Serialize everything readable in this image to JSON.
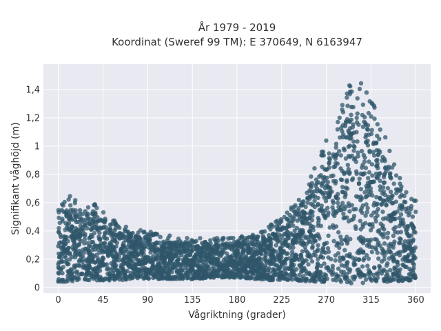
{
  "chart_data": {
    "type": "scatter",
    "title_line1": "År 1979 - 2019",
    "title_line2": "Koordinat (Sweref 99 TM): E 370649, N 6163947",
    "xlabel": "Vågriktning (grader)",
    "ylabel": "Signifikant våghöjd (m)",
    "xlim": [
      -15,
      375
    ],
    "ylim": [
      -0.04,
      1.58
    ],
    "x_ticks": [
      0,
      45,
      90,
      135,
      180,
      225,
      270,
      315,
      360
    ],
    "x_tick_labels": [
      "0",
      "45",
      "90",
      "135",
      "180",
      "225",
      "270",
      "315",
      "360"
    ],
    "y_ticks": [
      0,
      0.2,
      0.4,
      0.6,
      0.8,
      1,
      1.2,
      1.4
    ],
    "y_tick_labels": [
      "0",
      "0,2",
      "0,4",
      "0,6",
      "0,8",
      "1",
      "1,2",
      "1,4"
    ],
    "grid": true,
    "marker_color": "#2f5669",
    "background_color": "#e8e9f1",
    "envelope": {
      "x": [
        0,
        10,
        20,
        35,
        45,
        60,
        75,
        90,
        110,
        135,
        160,
        180,
        200,
        215,
        225,
        240,
        255,
        270,
        285,
        295,
        305,
        315,
        325,
        340,
        350,
        360
      ],
      "y_min": [
        0.04,
        0.04,
        0.05,
        0.05,
        0.05,
        0.05,
        0.06,
        0.06,
        0.06,
        0.06,
        0.07,
        0.07,
        0.06,
        0.05,
        0.05,
        0.05,
        0.04,
        0.04,
        0.04,
        0.03,
        0.03,
        0.04,
        0.04,
        0.04,
        0.05,
        0.05
      ],
      "y_max": [
        0.57,
        0.66,
        0.6,
        0.6,
        0.55,
        0.45,
        0.42,
        0.4,
        0.37,
        0.35,
        0.35,
        0.36,
        0.38,
        0.45,
        0.5,
        0.62,
        0.8,
        1.05,
        1.3,
        1.5,
        1.45,
        1.35,
        1.15,
        0.85,
        0.7,
        0.65
      ]
    }
  }
}
